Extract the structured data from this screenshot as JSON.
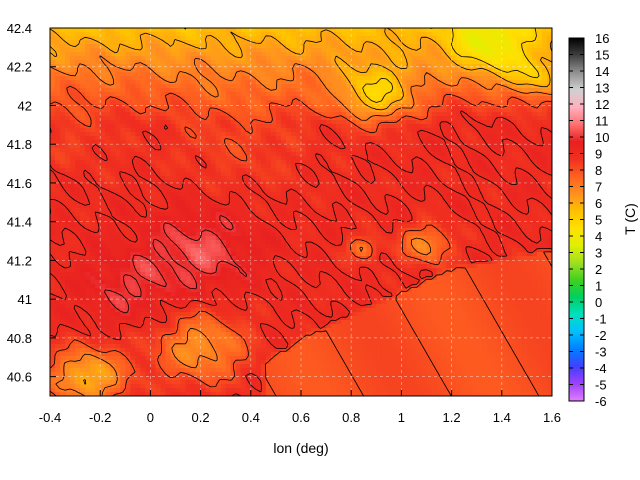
{
  "chart_data": {
    "type": "heatmap",
    "xlabel": "lon (deg)",
    "ylabel": "",
    "colorbar_label": "T (C)",
    "xlim": [
      -0.4,
      1.6
    ],
    "ylim": [
      40.5,
      42.4
    ],
    "x_ticks": [
      "-0.4",
      "-0.2",
      "0",
      "0.2",
      "0.4",
      "0.6",
      "0.8",
      "1",
      "1.2",
      "1.4",
      "1.6"
    ],
    "y_ticks": [
      "40.6",
      "40.8",
      "41",
      "41.2",
      "41.4",
      "41.6",
      "41.8",
      "42",
      "42.2",
      "42.4"
    ],
    "colorbar_range": [
      -6,
      16
    ],
    "colorbar_ticks": [
      "-6",
      "-5",
      "-4",
      "-3",
      "-2",
      "-1",
      "0",
      "1",
      "2",
      "3",
      "4",
      "5",
      "6",
      "7",
      "8",
      "9",
      "10",
      "11",
      "12",
      "13",
      "14",
      "15",
      "16"
    ],
    "colormap": [
      "#e080ff",
      "#a040ff",
      "#4040ff",
      "#0080ff",
      "#00c0ff",
      "#00e0c0",
      "#00d060",
      "#40d020",
      "#a0e020",
      "#e0f000",
      "#ffe000",
      "#ffc000",
      "#ff9020",
      "#ff6020",
      "#f03020",
      "#e82020",
      "#ff7070",
      "#ffb0c0",
      "#d0d0d0",
      "#909090",
      "#404040",
      "#000000"
    ],
    "grid": true,
    "field_features": [
      {
        "type": "baseline",
        "value": 9.0
      },
      {
        "type": "gradient",
        "lat_start": 41.9,
        "lat_end": 42.4,
        "delta": -3.5
      },
      {
        "type": "coastal_warm",
        "value": 8.0
      },
      {
        "type": "spot",
        "lon": 0.2,
        "lat": 41.25,
        "radius": 0.22,
        "delta": 1.3
      },
      {
        "type": "spot",
        "lon": -0.1,
        "lat": 41.05,
        "radius": 0.2,
        "delta": 0.9
      },
      {
        "type": "spot",
        "lon": 0.9,
        "lat": 42.05,
        "radius": 0.15,
        "delta": -3.0
      },
      {
        "type": "spot",
        "lon": 1.35,
        "lat": 42.3,
        "radius": 0.15,
        "delta": -2.5
      },
      {
        "type": "spot",
        "lon": 1.52,
        "lat": 42.15,
        "radius": 0.1,
        "delta": -2.0
      },
      {
        "type": "spot",
        "lon": 1.1,
        "lat": 41.28,
        "radius": 0.1,
        "delta": -2.3
      },
      {
        "type": "spot",
        "lon": 0.85,
        "lat": 41.26,
        "radius": 0.06,
        "delta": -2.0
      },
      {
        "type": "spot",
        "lon": -0.25,
        "lat": 40.6,
        "radius": 0.15,
        "delta": -3.2
      },
      {
        "type": "spot",
        "lon": 0.2,
        "lat": 40.75,
        "radius": 0.18,
        "delta": -2.5
      },
      {
        "type": "spot",
        "lon": 0.35,
        "lat": 41.85,
        "radius": 0.3,
        "delta": -0.8
      },
      {
        "type": "spot",
        "lon": -0.3,
        "lat": 41.85,
        "radius": 0.2,
        "delta": -0.6
      }
    ]
  }
}
